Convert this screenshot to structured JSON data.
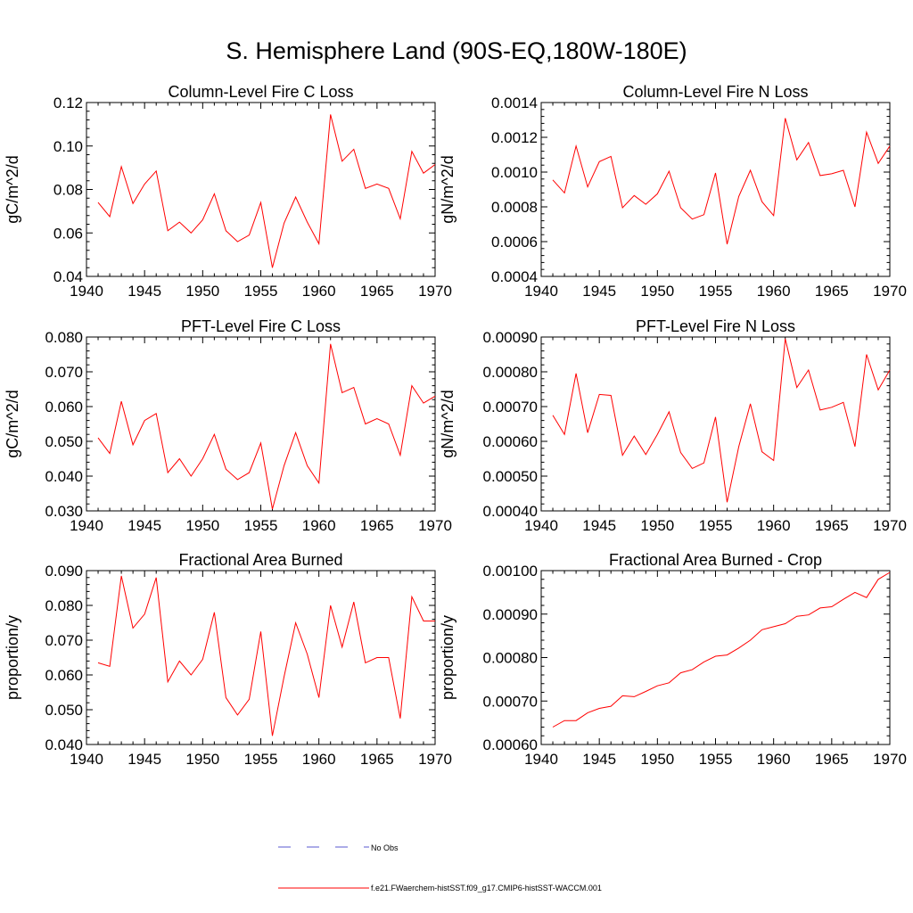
{
  "title": "S. Hemisphere Land (90S-EQ,180W-180E)",
  "colors": {
    "model": "#ff0000",
    "obs": "#5a5ad2",
    "axis": "#000000"
  },
  "legend": {
    "obs_label": "No Obs",
    "model_label": "f.e21.FWaerchem-histSST.f09_g17.CMIP6-histSST-WACCM.001"
  },
  "chart_data": [
    {
      "type": "line",
      "title": "Column-Level Fire C Loss",
      "ylabel": "gC/m^2/d",
      "xlim": [
        1940,
        1970
      ],
      "ylim": [
        0.04,
        0.12
      ],
      "xticks": [
        1940,
        1945,
        1950,
        1955,
        1960,
        1965,
        1970
      ],
      "yticks": [
        0.04,
        0.06,
        0.08,
        0.1,
        0.12
      ],
      "ytick_labels": [
        "0.04",
        "0.06",
        "0.08",
        "0.10",
        "0.12"
      ],
      "x": [
        1941,
        1942,
        1943,
        1944,
        1945,
        1946,
        1947,
        1948,
        1949,
        1950,
        1951,
        1952,
        1953,
        1954,
        1955,
        1956,
        1957,
        1958,
        1959,
        1960,
        1961,
        1962,
        1963,
        1964,
        1965,
        1966,
        1967,
        1968,
        1969,
        1970
      ],
      "y": [
        0.074,
        0.0675,
        0.0905,
        0.0735,
        0.0825,
        0.0885,
        0.061,
        0.065,
        0.06,
        0.066,
        0.078,
        0.061,
        0.056,
        0.059,
        0.074,
        0.044,
        0.0645,
        0.0765,
        0.065,
        0.055,
        0.1145,
        0.093,
        0.0985,
        0.0805,
        0.0825,
        0.0805,
        0.0665,
        0.0975,
        0.0875,
        0.0915
      ]
    },
    {
      "type": "line",
      "title": "Column-Level Fire N Loss",
      "ylabel": "gN/m^2/d",
      "xlim": [
        1940,
        1970
      ],
      "ylim": [
        0.0004,
        0.0014
      ],
      "xticks": [
        1940,
        1945,
        1950,
        1955,
        1960,
        1965,
        1970
      ],
      "yticks": [
        0.0004,
        0.0006,
        0.0008,
        0.001,
        0.0012,
        0.0014
      ],
      "ytick_labels": [
        "0.0004",
        "0.0006",
        "0.0008",
        "0.0010",
        "0.0012",
        "0.0014"
      ],
      "x": [
        1941,
        1942,
        1943,
        1944,
        1945,
        1946,
        1947,
        1948,
        1949,
        1950,
        1951,
        1952,
        1953,
        1954,
        1955,
        1956,
        1957,
        1958,
        1959,
        1960,
        1961,
        1962,
        1963,
        1964,
        1965,
        1966,
        1967,
        1968,
        1969,
        1970
      ],
      "y": [
        0.000955,
        0.00088,
        0.00115,
        0.000915,
        0.00106,
        0.00109,
        0.000795,
        0.000865,
        0.000815,
        0.000875,
        0.001005,
        0.000795,
        0.00073,
        0.000755,
        0.000995,
        0.000585,
        0.00086,
        0.00101,
        0.00083,
        0.00075,
        0.00131,
        0.00107,
        0.00117,
        0.00098,
        0.00099,
        0.00101,
        0.0008,
        0.00123,
        0.00105,
        0.00115
      ]
    },
    {
      "type": "line",
      "title": "PFT-Level Fire C Loss",
      "ylabel": "gC/m^2/d",
      "xlim": [
        1940,
        1970
      ],
      "ylim": [
        0.03,
        0.08
      ],
      "xticks": [
        1940,
        1945,
        1950,
        1955,
        1960,
        1965,
        1970
      ],
      "yticks": [
        0.03,
        0.04,
        0.05,
        0.06,
        0.07,
        0.08
      ],
      "ytick_labels": [
        "0.030",
        "0.040",
        "0.050",
        "0.060",
        "0.070",
        "0.080"
      ],
      "x": [
        1941,
        1942,
        1943,
        1944,
        1945,
        1946,
        1947,
        1948,
        1949,
        1950,
        1951,
        1952,
        1953,
        1954,
        1955,
        1956,
        1957,
        1958,
        1959,
        1960,
        1961,
        1962,
        1963,
        1964,
        1965,
        1966,
        1967,
        1968,
        1969,
        1970
      ],
      "y": [
        0.051,
        0.0465,
        0.0615,
        0.049,
        0.056,
        0.058,
        0.041,
        0.045,
        0.04,
        0.045,
        0.052,
        0.042,
        0.039,
        0.041,
        0.0495,
        0.0305,
        0.043,
        0.0525,
        0.043,
        0.038,
        0.078,
        0.064,
        0.0655,
        0.055,
        0.0565,
        0.055,
        0.046,
        0.066,
        0.061,
        0.063
      ]
    },
    {
      "type": "line",
      "title": "PFT-Level Fire N Loss",
      "ylabel": "gN/m^2/d",
      "xlim": [
        1940,
        1970
      ],
      "ylim": [
        0.0004,
        0.0009
      ],
      "xticks": [
        1940,
        1945,
        1950,
        1955,
        1960,
        1965,
        1970
      ],
      "yticks": [
        0.0004,
        0.0005,
        0.0006,
        0.0007,
        0.0008,
        0.0009
      ],
      "ytick_labels": [
        "0.00040",
        "0.00050",
        "0.00060",
        "0.00070",
        "0.00080",
        "0.00090"
      ],
      "x": [
        1941,
        1942,
        1943,
        1944,
        1945,
        1946,
        1947,
        1948,
        1949,
        1950,
        1951,
        1952,
        1953,
        1954,
        1955,
        1956,
        1957,
        1958,
        1959,
        1960,
        1961,
        1962,
        1963,
        1964,
        1965,
        1966,
        1967,
        1968,
        1969,
        1970
      ],
      "y": [
        0.000675,
        0.00062,
        0.000795,
        0.000625,
        0.000735,
        0.000732,
        0.00056,
        0.000615,
        0.000562,
        0.00062,
        0.000685,
        0.000568,
        0.000522,
        0.000538,
        0.00067,
        0.000425,
        0.000585,
        0.000708,
        0.00057,
        0.000545,
        0.000895,
        0.000755,
        0.000805,
        0.00069,
        0.000698,
        0.000712,
        0.000585,
        0.00085,
        0.000748,
        0.000805
      ]
    },
    {
      "type": "line",
      "title": "Fractional Area Burned",
      "ylabel": "proportion/y",
      "xlim": [
        1940,
        1970
      ],
      "ylim": [
        0.04,
        0.09
      ],
      "xticks": [
        1940,
        1945,
        1950,
        1955,
        1960,
        1965,
        1970
      ],
      "yticks": [
        0.04,
        0.05,
        0.06,
        0.07,
        0.08,
        0.09
      ],
      "ytick_labels": [
        "0.040",
        "0.050",
        "0.060",
        "0.070",
        "0.080",
        "0.090"
      ],
      "x": [
        1941,
        1942,
        1943,
        1944,
        1945,
        1946,
        1947,
        1948,
        1949,
        1950,
        1951,
        1952,
        1953,
        1954,
        1955,
        1956,
        1957,
        1958,
        1959,
        1960,
        1961,
        1962,
        1963,
        1964,
        1965,
        1966,
        1967,
        1968,
        1969,
        1970
      ],
      "y": [
        0.0635,
        0.0625,
        0.0885,
        0.0735,
        0.0775,
        0.088,
        0.058,
        0.064,
        0.06,
        0.0645,
        0.078,
        0.0535,
        0.0485,
        0.053,
        0.0725,
        0.0425,
        0.0595,
        0.075,
        0.066,
        0.0535,
        0.08,
        0.068,
        0.081,
        0.0635,
        0.065,
        0.065,
        0.0475,
        0.0825,
        0.0755,
        0.0755
      ]
    },
    {
      "type": "line",
      "title": "Fractional Area Burned - Crop",
      "ylabel": "proportion/y",
      "xlim": [
        1940,
        1970
      ],
      "ylim": [
        0.0006,
        0.001
      ],
      "xticks": [
        1940,
        1945,
        1950,
        1955,
        1960,
        1965,
        1970
      ],
      "yticks": [
        0.0006,
        0.0007,
        0.0008,
        0.0009,
        0.001
      ],
      "ytick_labels": [
        "0.00060",
        "0.00070",
        "0.00080",
        "0.00090",
        "0.00100"
      ],
      "x": [
        1941,
        1942,
        1943,
        1944,
        1945,
        1946,
        1947,
        1948,
        1949,
        1950,
        1951,
        1952,
        1953,
        1954,
        1955,
        1956,
        1957,
        1958,
        1959,
        1960,
        1961,
        1962,
        1963,
        1964,
        1965,
        1966,
        1967,
        1968,
        1969,
        1970
      ],
      "y": [
        0.00064,
        0.000655,
        0.000655,
        0.000673,
        0.000683,
        0.000688,
        0.000712,
        0.00071,
        0.000722,
        0.000735,
        0.000742,
        0.000765,
        0.000772,
        0.00079,
        0.000803,
        0.000806,
        0.000822,
        0.00084,
        0.000864,
        0.000871,
        0.000878,
        0.000895,
        0.000898,
        0.000914,
        0.000917,
        0.000934,
        0.00095,
        0.000938,
        0.00098,
        0.000996
      ]
    }
  ]
}
